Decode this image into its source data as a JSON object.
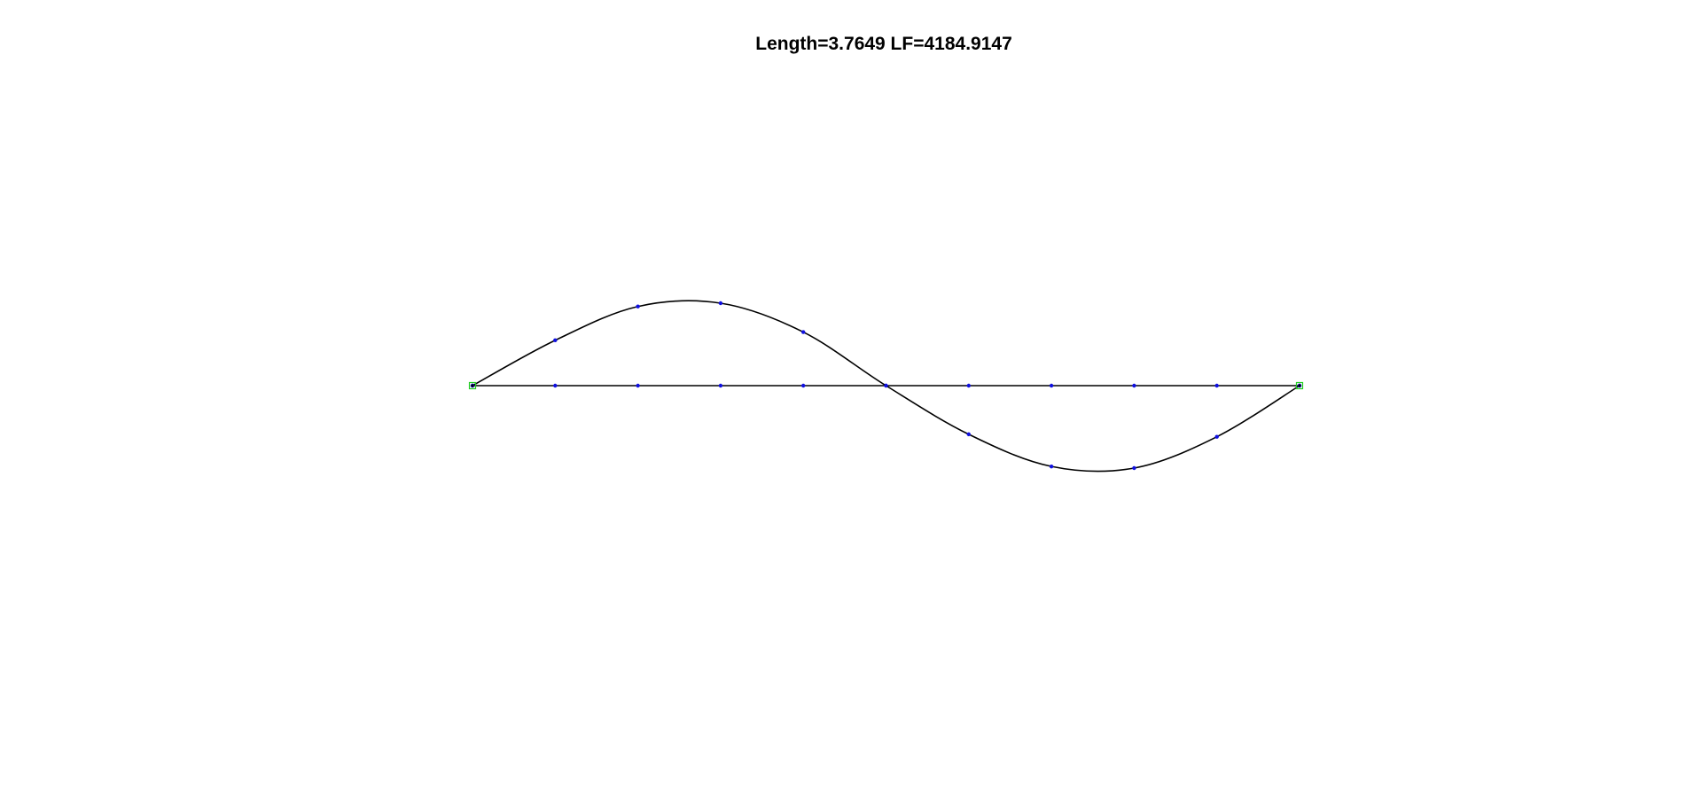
{
  "chart_data": {
    "type": "line",
    "title": "Length=3.7649 LF=4184.9147",
    "xlabel": "",
    "ylabel": "",
    "xlim": [
      0,
      10
    ],
    "ylim": [
      -1.3,
      1.3
    ],
    "axes_visible": false,
    "grid": false,
    "series": [
      {
        "role": "baseline",
        "x": [
          0,
          1,
          2,
          3,
          4,
          5,
          6,
          7,
          8,
          9,
          10
        ],
        "y": [
          0,
          0,
          0,
          0,
          0,
          0,
          0,
          0,
          0,
          0,
          0
        ]
      },
      {
        "role": "deflected-shape",
        "x": [
          0,
          1,
          2,
          3,
          4,
          5,
          6,
          7,
          8,
          9,
          10
        ],
        "y": [
          0,
          0.55,
          0.96,
          1.0,
          0.65,
          0.0,
          -0.59,
          -0.98,
          -1.0,
          -0.62,
          0
        ]
      }
    ],
    "supports": [
      {
        "x": 0,
        "y": 0
      },
      {
        "x": 10,
        "y": 0
      }
    ],
    "colors": {
      "line": "#000000",
      "node": "#1010e0",
      "support": "#22cc22"
    }
  }
}
